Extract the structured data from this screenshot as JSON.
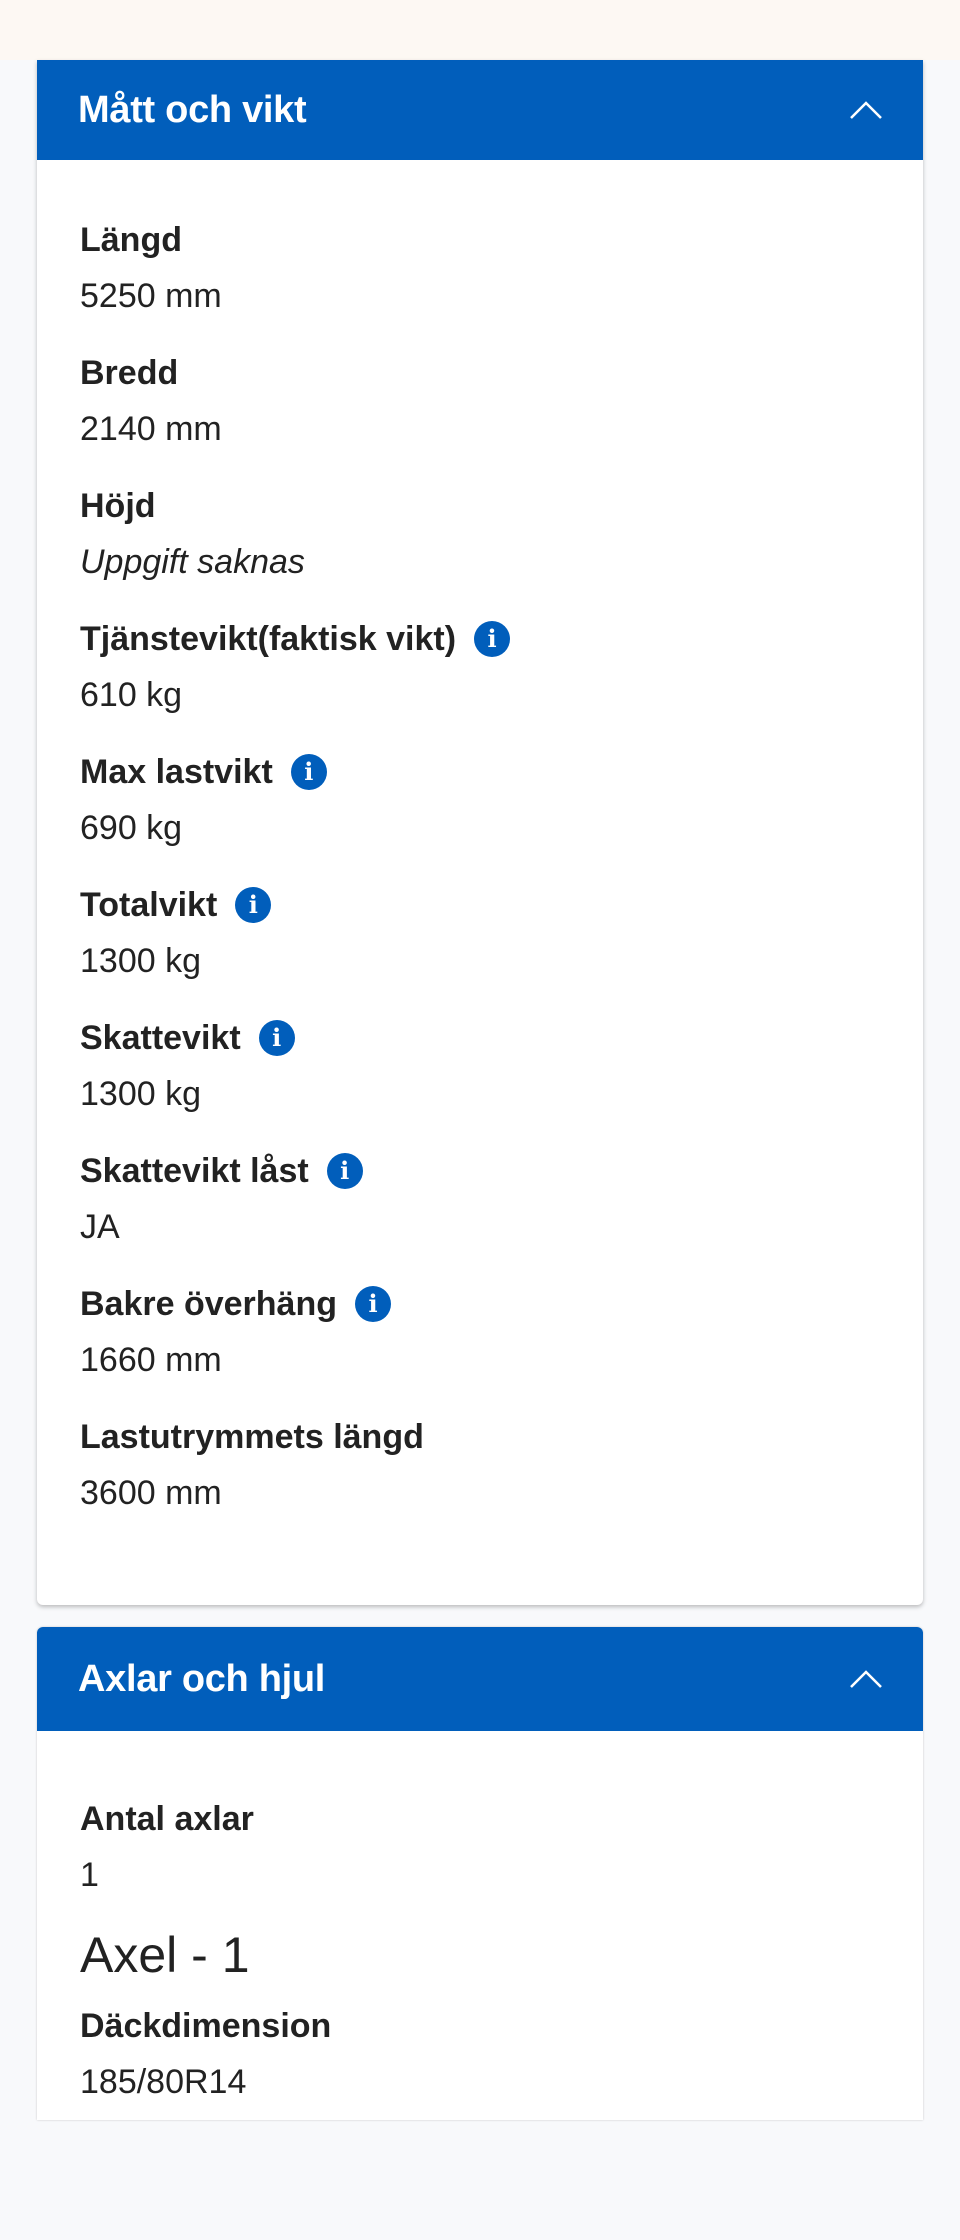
{
  "colors": {
    "accent": "#015ebb",
    "top_band": "#fdf8f3",
    "background": "#f8f9fb"
  },
  "sections": [
    {
      "title": "Mått och vikt",
      "expanded": true,
      "icon": "chevron-up-icon",
      "items": [
        {
          "label": "Längd",
          "value": "5250 mm",
          "info": false
        },
        {
          "label": "Bredd",
          "value": "2140 mm",
          "info": false
        },
        {
          "label": "Höjd",
          "value": "Uppgift saknas",
          "info": false,
          "italic": true
        },
        {
          "label": "Tjänstevikt(faktisk vikt)",
          "value": "610 kg",
          "info": true
        },
        {
          "label": "Max lastvikt",
          "value": "690 kg",
          "info": true
        },
        {
          "label": "Totalvikt",
          "value": "1300 kg",
          "info": true
        },
        {
          "label": "Skattevikt",
          "value": "1300 kg",
          "info": true
        },
        {
          "label": "Skattevikt låst",
          "value": "JA",
          "info": true
        },
        {
          "label": "Bakre överhäng",
          "value": "1660 mm",
          "info": true
        },
        {
          "label": "Lastutrymmets längd",
          "value": "3600 mm",
          "info": false
        }
      ]
    },
    {
      "title": "Axlar och hjul",
      "expanded": true,
      "icon": "chevron-up-icon",
      "antal_label": "Antal axlar",
      "antal_value": "1",
      "axel_heading": "Axel - 1",
      "dack_label": "Däckdimension",
      "dack_value": "185/80R14"
    }
  ],
  "info_glyph": "i"
}
